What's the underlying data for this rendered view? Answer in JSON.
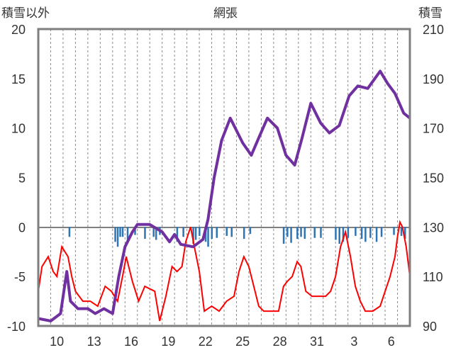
{
  "chart_data": {
    "type": "line",
    "title": "網張",
    "left_axis_label": "積雪以外",
    "right_axis_label": "積雪",
    "left_ticks": [
      "20",
      "15",
      "10",
      "5",
      "0",
      "-5",
      "-10"
    ],
    "right_ticks": [
      "210",
      "190",
      "170",
      "150",
      "130",
      "110",
      "90"
    ],
    "x_tick_labels": [
      "10",
      "13",
      "16",
      "19",
      "22",
      "25",
      "28",
      "31",
      "3",
      "6"
    ],
    "left_ylim": [
      -10,
      20
    ],
    "right_ylim": [
      90,
      210
    ],
    "x_range": [
      0,
      30
    ],
    "x_tick_positions": [
      1.5,
      4.5,
      7.5,
      10.5,
      13.5,
      16.5,
      19.5,
      22.5,
      25.5,
      28.5
    ],
    "grid": "vertical dashed daily lines",
    "series": [
      {
        "axis": "right",
        "color": "#7030a0",
        "points": [
          [
            0,
            93
          ],
          [
            1,
            92
          ],
          [
            1.8,
            95
          ],
          [
            2.3,
            112
          ],
          [
            2.6,
            100
          ],
          [
            3.2,
            97
          ],
          [
            4,
            97
          ],
          [
            4.6,
            95
          ],
          [
            5.3,
            97
          ],
          [
            6,
            95
          ],
          [
            6.5,
            110
          ],
          [
            7,
            122
          ],
          [
            7.6,
            128
          ],
          [
            8,
            131
          ],
          [
            9,
            131
          ],
          [
            10,
            128
          ],
          [
            10.6,
            124
          ],
          [
            11,
            127
          ],
          [
            11.5,
            123
          ],
          [
            12.5,
            122
          ],
          [
            13.3,
            125
          ],
          [
            13.7,
            133
          ],
          [
            14.2,
            150
          ],
          [
            14.8,
            165
          ],
          [
            15.5,
            174
          ],
          [
            16.5,
            164
          ],
          [
            17.2,
            159
          ],
          [
            17.8,
            166
          ],
          [
            18.5,
            174
          ],
          [
            19.3,
            170
          ],
          [
            20,
            159
          ],
          [
            20.7,
            155
          ],
          [
            21.3,
            166
          ],
          [
            22,
            180
          ],
          [
            22.8,
            172
          ],
          [
            23.5,
            168
          ],
          [
            24.3,
            171
          ],
          [
            25.1,
            183
          ],
          [
            25.8,
            187
          ],
          [
            26.6,
            186
          ],
          [
            27.6,
            193
          ],
          [
            28.2,
            188
          ],
          [
            28.8,
            184
          ],
          [
            29.5,
            176
          ],
          [
            30,
            174
          ]
        ]
      },
      {
        "axis": "left",
        "color": "#ff0000",
        "points": [
          [
            0,
            -6.5
          ],
          [
            0.3,
            -4
          ],
          [
            0.8,
            -3
          ],
          [
            1.2,
            -4.5
          ],
          [
            1.5,
            -5
          ],
          [
            1.9,
            -2
          ],
          [
            2.4,
            -3
          ],
          [
            2.7,
            -5
          ],
          [
            3,
            -6.5
          ],
          [
            3.6,
            -7.5
          ],
          [
            4.2,
            -7.5
          ],
          [
            4.8,
            -8
          ],
          [
            5.4,
            -6
          ],
          [
            5.9,
            -6.5
          ],
          [
            6.4,
            -7.5
          ],
          [
            6.8,
            -5
          ],
          [
            7.1,
            -3
          ],
          [
            7.6,
            -5.5
          ],
          [
            8.1,
            -7.5
          ],
          [
            8.6,
            -6
          ],
          [
            9.4,
            -6.5
          ],
          [
            9.8,
            -9.5
          ],
          [
            10.3,
            -7
          ],
          [
            10.8,
            -4
          ],
          [
            11.2,
            -4.5
          ],
          [
            11.6,
            -4
          ],
          [
            11.9,
            -1.5
          ],
          [
            12.3,
            0
          ],
          [
            12.6,
            -2
          ],
          [
            13,
            -4.5
          ],
          [
            13.4,
            -8.5
          ],
          [
            14,
            -8
          ],
          [
            14.6,
            -8.5
          ],
          [
            15.2,
            -7.5
          ],
          [
            15.8,
            -7
          ],
          [
            16.2,
            -4.5
          ],
          [
            16.6,
            -3
          ],
          [
            17,
            -4
          ],
          [
            17.4,
            -6
          ],
          [
            17.8,
            -8
          ],
          [
            18.2,
            -8.5
          ],
          [
            18.8,
            -8.5
          ],
          [
            19.4,
            -8.5
          ],
          [
            19.8,
            -6
          ],
          [
            20.1,
            -5.5
          ],
          [
            20.5,
            -5
          ],
          [
            20.9,
            -3.5
          ],
          [
            21.2,
            -4
          ],
          [
            21.6,
            -6.5
          ],
          [
            22.1,
            -7
          ],
          [
            22.6,
            -7
          ],
          [
            23.2,
            -7
          ],
          [
            23.6,
            -6.5
          ],
          [
            24,
            -5
          ],
          [
            24.4,
            -2
          ],
          [
            24.8,
            -0.5
          ],
          [
            25.2,
            -3
          ],
          [
            25.6,
            -6
          ],
          [
            26,
            -7.5
          ],
          [
            26.4,
            -8.5
          ],
          [
            27,
            -8.5
          ],
          [
            27.6,
            -8
          ],
          [
            28,
            -6.5
          ],
          [
            28.4,
            -5
          ],
          [
            28.8,
            -3
          ],
          [
            29,
            -1
          ],
          [
            29.2,
            0.5
          ],
          [
            29.4,
            0
          ],
          [
            29.7,
            -2
          ],
          [
            29.9,
            -4
          ],
          [
            30,
            -5
          ]
        ]
      }
    ],
    "precipitation_bars": {
      "axis": "left",
      "color": "#2e75b6",
      "bars": [
        [
          2.5,
          -1
        ],
        [
          6.2,
          -1.5
        ],
        [
          6.4,
          -2
        ],
        [
          6.6,
          -1
        ],
        [
          6.8,
          -1
        ],
        [
          7.2,
          -1.5
        ],
        [
          7.8,
          -0.8
        ],
        [
          8.6,
          -1.2
        ],
        [
          9.3,
          -1
        ],
        [
          9.5,
          -1.3
        ],
        [
          9.8,
          -0.8
        ],
        [
          11.2,
          -1.5
        ],
        [
          11.7,
          -1
        ],
        [
          12.5,
          -1.7
        ],
        [
          12.7,
          -1.3
        ],
        [
          13,
          -0.9
        ],
        [
          13.5,
          -1.5
        ],
        [
          13.7,
          -2
        ],
        [
          14,
          -1.2
        ],
        [
          14.4,
          -1.1
        ],
        [
          15.2,
          -0.9
        ],
        [
          15.6,
          -1
        ],
        [
          16.6,
          -1.2
        ],
        [
          17.1,
          -0.7
        ],
        [
          19.8,
          -1.7
        ],
        [
          20.1,
          -1
        ],
        [
          20.4,
          -1.6
        ],
        [
          20.9,
          -1.2
        ],
        [
          21.2,
          -1
        ],
        [
          21.5,
          -1.2
        ],
        [
          22.3,
          -1.1
        ],
        [
          22.8,
          -1.1
        ],
        [
          24,
          -1.3
        ],
        [
          24.3,
          -1.7
        ],
        [
          24.6,
          -1.5
        ],
        [
          25,
          -1.1
        ],
        [
          25.6,
          -0.9
        ],
        [
          26.1,
          -1.2
        ],
        [
          26.4,
          -1.5
        ],
        [
          26.8,
          -1.1
        ],
        [
          27.3,
          -1.5
        ],
        [
          27.7,
          -1
        ],
        [
          28.7,
          -0.8
        ],
        [
          29.3,
          -0.9
        ],
        [
          29.6,
          -1.2
        ]
      ]
    }
  }
}
